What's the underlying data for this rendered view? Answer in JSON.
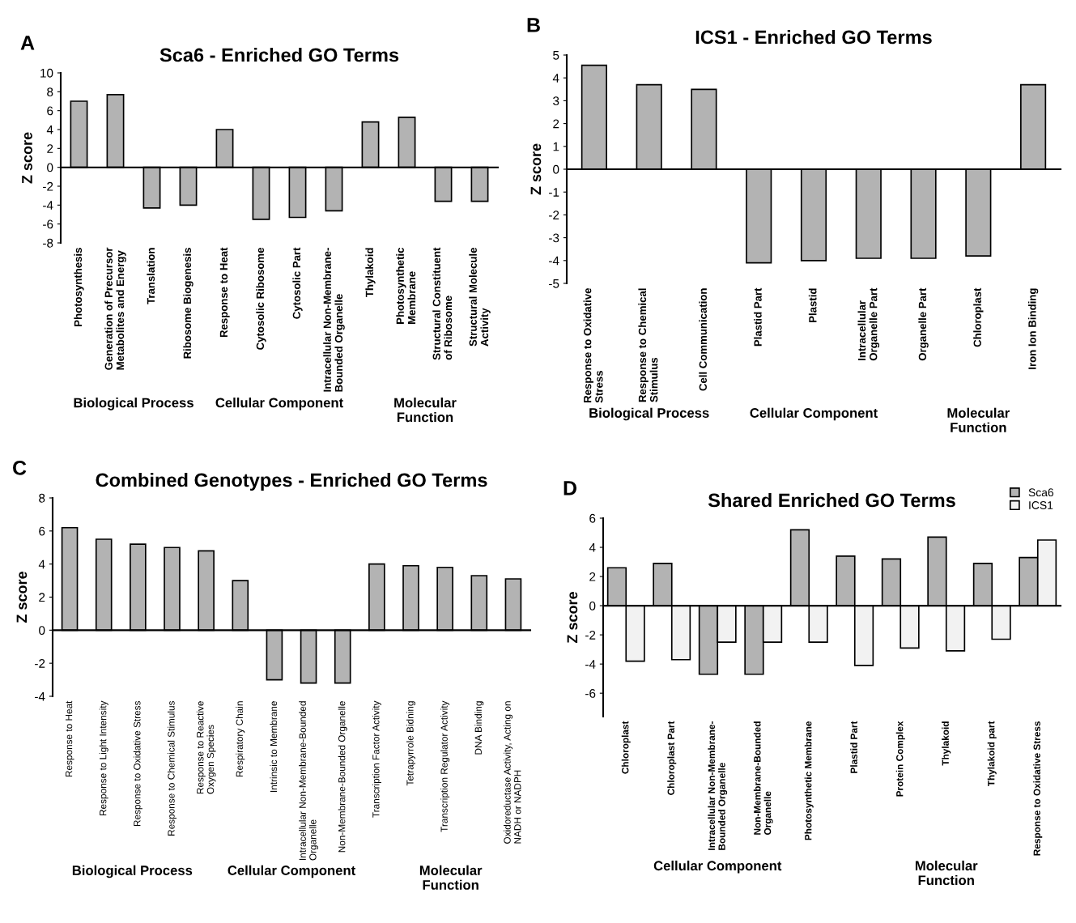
{
  "chart_data": [
    {
      "type": "bar",
      "title": "Sca6 - Enriched GO Terms",
      "ylabel": "Z score",
      "categories": [
        "Photosynthesis",
        "Generation of Precursor\nMetabolites and Energy",
        "Translation",
        "Ribosome Biogenesis",
        "Response to Heat",
        "Cytosolic Ribosome",
        "Cytosolic Part",
        "Intracellular Non-Membrane-\nBounded Organelle",
        "Thylakoid",
        "Photosynthetic\nMembrane",
        "Structural Constituent\nof Ribosome",
        "Structural Molecule\nActivity"
      ],
      "values": [
        7.0,
        7.7,
        -4.3,
        -4.0,
        4.0,
        -5.5,
        -5.3,
        -4.6,
        4.8,
        5.3,
        -3.6,
        -3.6
      ],
      "color": "#b3b3b3",
      "ylim": [
        -8,
        10
      ],
      "yticks": [
        -8,
        -6,
        -4,
        -2,
        0,
        2,
        4,
        6,
        8,
        10
      ],
      "annotations": [
        "A",
        "Biological Process",
        "Cellular Component",
        "Molecular\nFunction"
      ]
    },
    {
      "type": "bar",
      "title": "ICS1 - Enriched GO Terms",
      "ylabel": "Z score",
      "categories": [
        "Response to Oxidative\nStress",
        "Response to Chemical\nStimulus",
        "Cell Communication",
        "Plastid Part",
        "Plastid",
        "Intracellular\nOrganelle Part",
        "Organelle Part",
        "Chloroplast",
        "Iron Ion Binding"
      ],
      "values": [
        4.55,
        3.7,
        3.5,
        -4.1,
        -4.0,
        -3.9,
        -3.9,
        -3.8,
        3.7
      ],
      "color": "#b3b3b3",
      "ylim": [
        -5,
        5
      ],
      "yticks": [
        -5,
        -4,
        -3,
        -2,
        -1,
        0,
        1,
        2,
        3,
        4,
        5
      ],
      "annotations": [
        "B",
        "Biological Process",
        "Cellular Component",
        "Molecular\nFunction"
      ]
    },
    {
      "type": "bar",
      "title": "Combined Genotypes - Enriched GO Terms",
      "ylabel": "Z score",
      "categories": [
        "Response to Heat",
        "Response to Light Intensity",
        "Response to Oxidative Stress",
        "Response to Chemical Stimulus",
        "Response to Reactive\nOxygen Species",
        "Respiratory Chain",
        "Intrinsic to Membrane",
        "Intracellular Non-Membrane-Bounded\nOrganelle",
        "Non-Membrane-Bounded Organelle",
        "Transcription Factor Activity",
        "Tetrapyrrole Bidning",
        "Transcription Regulator Activity",
        "DNA Binding",
        "Oxidoreductase Activity, Acting on\nNADH or NADPH"
      ],
      "values": [
        6.2,
        5.5,
        5.2,
        5.0,
        4.8,
        3.0,
        -3.0,
        -3.2,
        -3.2,
        4.0,
        3.9,
        3.8,
        3.3,
        3.1
      ],
      "color": "#b3b3b3",
      "ylim": [
        -4,
        8
      ],
      "yticks": [
        -4,
        -2,
        0,
        2,
        4,
        6,
        8
      ],
      "annotations": [
        "C",
        "Biological Process",
        "Cellular Component",
        "Molecular\nFunction"
      ]
    },
    {
      "type": "bar",
      "title": "Shared Enriched GO Terms",
      "ylabel": "Z score",
      "legend": "top right",
      "categories": [
        "Chloroplast",
        "Chloroplast Part",
        "Intracellular Non-Membrane-\nBounded Organelle",
        "Non-Membrane-Bounded\nOrganelle",
        "Photosynthetic Membrane",
        "Plastid Part",
        "Protein Complex",
        "Thylakoid",
        "Thylakoid part",
        "Response to Oxidative Stress"
      ],
      "series": [
        {
          "name": "Sca6",
          "color": "#b3b3b3",
          "values": [
            2.6,
            2.9,
            -4.7,
            -4.7,
            5.2,
            3.4,
            3.2,
            4.7,
            2.9,
            3.3
          ]
        },
        {
          "name": "ICS1",
          "color": "#f2f2f2",
          "values": [
            -3.8,
            -3.7,
            -2.5,
            -2.5,
            -2.5,
            -4.1,
            -2.9,
            -3.1,
            -2.3,
            4.5
          ]
        }
      ],
      "ylim": [
        -7.6,
        6
      ],
      "yticks": [
        -6,
        -4,
        -2,
        0,
        2,
        4,
        6
      ],
      "annotations": [
        "D",
        "Cellular Component",
        "Molecular\nFunction"
      ]
    }
  ]
}
